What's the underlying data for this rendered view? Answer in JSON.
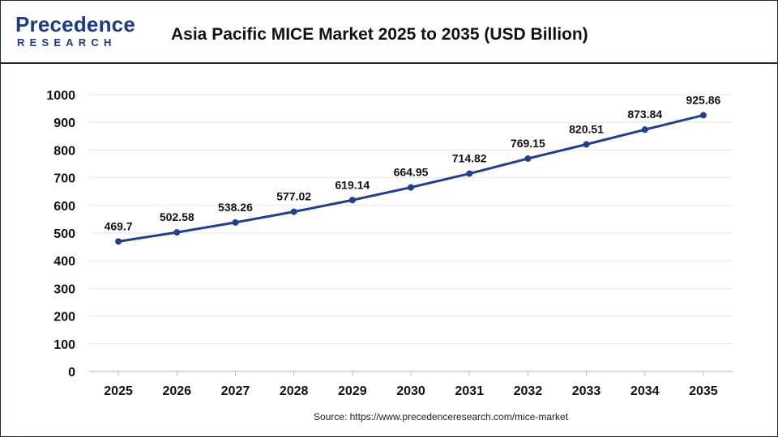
{
  "header": {
    "logo_main": "Precedence",
    "logo_sub": "RESEARCH",
    "title": "Asia Pacific MICE Market 2025 to 2035  (USD Billion)"
  },
  "footer": {
    "source": "Source: https://www.precedenceresearch.com/mice-market"
  },
  "colors": {
    "line": "#1e3f93",
    "brand": "#1a3a8c",
    "grid": "#e6e6e6",
    "text": "#111111"
  },
  "chart_data": {
    "type": "line",
    "title": "Asia Pacific MICE Market 2025 to 2035  (USD Billion)",
    "xlabel": "",
    "ylabel": "",
    "categories": [
      "2025",
      "2026",
      "2027",
      "2028",
      "2029",
      "2030",
      "2031",
      "2032",
      "2033",
      "2034",
      "2035"
    ],
    "series": [
      {
        "values": [
          469.7,
          502.58,
          538.26,
          577.02,
          619.14,
          664.95,
          714.82,
          769.15,
          820.51,
          873.84,
          925.86
        ],
        "labels": [
          "469.7",
          "502.58",
          "538.26",
          "577.02",
          "619.14",
          "664.95",
          "714.82",
          "769.15",
          "820.51",
          "873.84",
          "925.86"
        ]
      }
    ],
    "ylim": [
      0,
      1000
    ],
    "yticks": [
      "0",
      "100",
      "200",
      "300",
      "400",
      "500",
      "600",
      "700",
      "800",
      "900",
      "1000"
    ],
    "grid": true,
    "legend": "none",
    "markers": true
  }
}
